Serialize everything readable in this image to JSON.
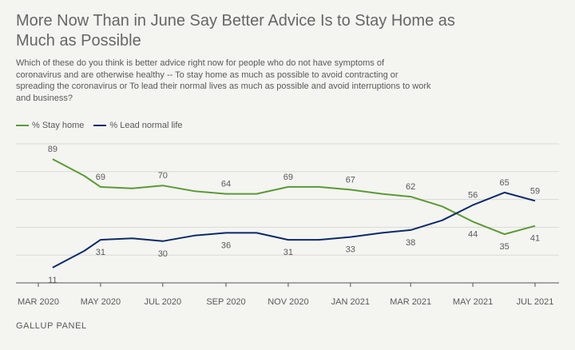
{
  "title": "More Now Than in June Say Better Advice Is to Stay Home as Much as Possible",
  "question": "Which of these do you think is better advice right now for people who do not have symptoms of coronavirus and are otherwise healthy -- To stay home as much as possible to avoid contracting or spreading the coronavirus or To lead their normal lives as much as possible and avoid interruptions to work and business?",
  "source": "GALLUP PANEL",
  "colors": {
    "stay_home": "#5a9a35",
    "normal_life": "#0b2a66",
    "grid": "#d9d9d6",
    "axis": "#555555"
  },
  "chart_data": {
    "type": "line",
    "ylim": [
      0,
      100
    ],
    "x_ticks": [
      "MAR 2020",
      "MAY 2020",
      "JUL 2020",
      "SEP 2020",
      "NOV 2020",
      "JAN 2021",
      "MAR 2021",
      "MAY 2021",
      "JUL 2021"
    ],
    "series": [
      {
        "name": "% Stay home",
        "color": "#5a9a35",
        "values": [
          {
            "x": "2020-03-15",
            "y": 89,
            "label": "89"
          },
          {
            "x": "2020-04-15",
            "y": 77
          },
          {
            "x": "2020-05-01",
            "y": 69,
            "label": "69"
          },
          {
            "x": "2020-06-01",
            "y": 68
          },
          {
            "x": "2020-07-01",
            "y": 70,
            "label": "70"
          },
          {
            "x": "2020-08-01",
            "y": 66
          },
          {
            "x": "2020-09-01",
            "y": 64,
            "label": "64"
          },
          {
            "x": "2020-10-01",
            "y": 64
          },
          {
            "x": "2020-11-01",
            "y": 69,
            "label": "69"
          },
          {
            "x": "2020-12-01",
            "y": 69
          },
          {
            "x": "2021-01-01",
            "y": 67,
            "label": "67"
          },
          {
            "x": "2021-02-01",
            "y": 64
          },
          {
            "x": "2021-03-01",
            "y": 62,
            "label": "62"
          },
          {
            "x": "2021-04-01",
            "y": 55
          },
          {
            "x": "2021-05-01",
            "y": 44,
            "label": "44"
          },
          {
            "x": "2021-06-01",
            "y": 35,
            "label": "35"
          },
          {
            "x": "2021-07-01",
            "y": 41,
            "label": "41"
          }
        ]
      },
      {
        "name": "% Lead normal life",
        "color": "#0b2a66",
        "values": [
          {
            "x": "2020-03-15",
            "y": 11,
            "label": "11"
          },
          {
            "x": "2020-04-15",
            "y": 23
          },
          {
            "x": "2020-05-01",
            "y": 31,
            "label": "31"
          },
          {
            "x": "2020-06-01",
            "y": 32
          },
          {
            "x": "2020-07-01",
            "y": 30,
            "label": "30"
          },
          {
            "x": "2020-08-01",
            "y": 34
          },
          {
            "x": "2020-09-01",
            "y": 36,
            "label": "36"
          },
          {
            "x": "2020-10-01",
            "y": 36
          },
          {
            "x": "2020-11-01",
            "y": 31,
            "label": "31"
          },
          {
            "x": "2020-12-01",
            "y": 31
          },
          {
            "x": "2021-01-01",
            "y": 33,
            "label": "33"
          },
          {
            "x": "2021-02-01",
            "y": 36
          },
          {
            "x": "2021-03-01",
            "y": 38,
            "label": "38"
          },
          {
            "x": "2021-04-01",
            "y": 45
          },
          {
            "x": "2021-05-01",
            "y": 56,
            "label": "56"
          },
          {
            "x": "2021-06-01",
            "y": 65,
            "label": "65"
          },
          {
            "x": "2021-07-01",
            "y": 59,
            "label": "59"
          }
        ]
      }
    ],
    "grid": true,
    "legend_position": "top-left"
  }
}
